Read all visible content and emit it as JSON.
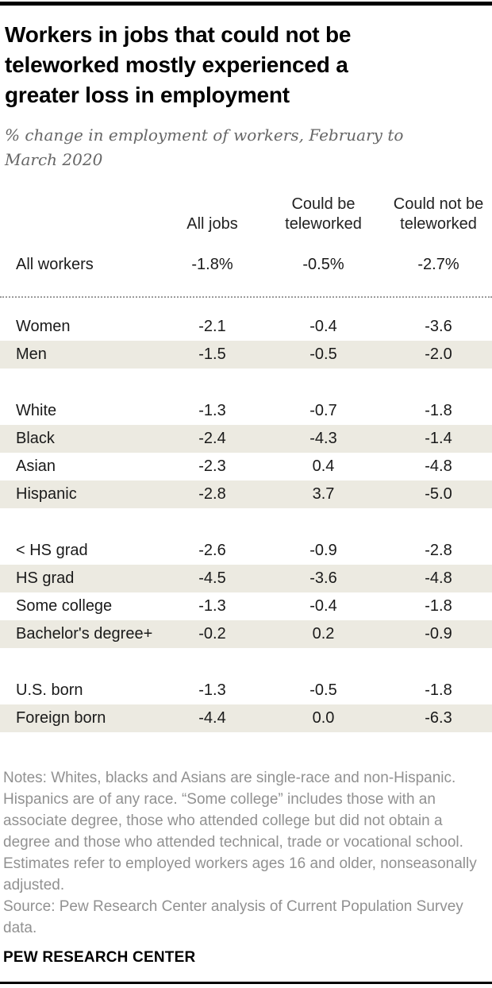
{
  "chart_data": {
    "type": "table",
    "title": "Workers in jobs that could not be teleworked mostly experienced a greater loss in employment",
    "subtitle": "% change in employment of workers, February to March 2020",
    "columns": [
      "All jobs",
      "Could be teleworked",
      "Could not be teleworked"
    ],
    "summary_row": {
      "label": "All workers",
      "values": [
        "-1.8%",
        "-0.5%",
        "-2.7%"
      ]
    },
    "rows": [
      {
        "label": "Women",
        "values": [
          "-2.1",
          "-0.4",
          "-3.6"
        ]
      },
      {
        "label": "Men",
        "values": [
          "-1.5",
          "-0.5",
          "-2.0"
        ]
      },
      {
        "label": "White",
        "values": [
          "-1.3",
          "-0.7",
          "-1.8"
        ]
      },
      {
        "label": "Black",
        "values": [
          "-2.4",
          "-4.3",
          "-1.4"
        ]
      },
      {
        "label": "Asian",
        "values": [
          "-2.3",
          "0.4",
          "-4.8"
        ]
      },
      {
        "label": "Hispanic",
        "values": [
          "-2.8",
          "3.7",
          "-5.0"
        ]
      },
      {
        "label": "< HS grad",
        "values": [
          "-2.6",
          "-0.9",
          "-2.8"
        ]
      },
      {
        "label": "HS grad",
        "values": [
          "-4.5",
          "-3.6",
          "-4.8"
        ]
      },
      {
        "label": "Some college",
        "values": [
          "-1.3",
          "-0.4",
          "-1.8"
        ]
      },
      {
        "label": "Bachelor's degree+",
        "values": [
          "-0.2",
          "0.2",
          "-0.9"
        ]
      },
      {
        "label": "U.S. born",
        "values": [
          "-1.3",
          "-0.5",
          "-1.8"
        ]
      },
      {
        "label": "Foreign born",
        "values": [
          "-4.4",
          "0.0",
          "-6.3"
        ]
      }
    ],
    "row_groups": [
      [
        0,
        1
      ],
      [
        2,
        3,
        4,
        5
      ],
      [
        6,
        7,
        8,
        9
      ],
      [
        10,
        11
      ]
    ],
    "shaded_row_color": "#ECEAE1",
    "layout": {
      "grid": "off",
      "value_alignment": "center",
      "legend_position": "none"
    }
  },
  "footer": {
    "notes": "Notes: Whites, blacks and Asians are single-race and non-Hispanic. Hispanics are of any race. “Some college” includes those with an associate degree, those who attended college but did not obtain a degree and those who attended technical, trade or vocational school. Estimates refer to employed workers ages 16 and older, nonseasonally adjusted.",
    "source": "Source: Pew Research Center analysis of Current Population Survey data.",
    "brand": "PEW RESEARCH CENTER"
  }
}
